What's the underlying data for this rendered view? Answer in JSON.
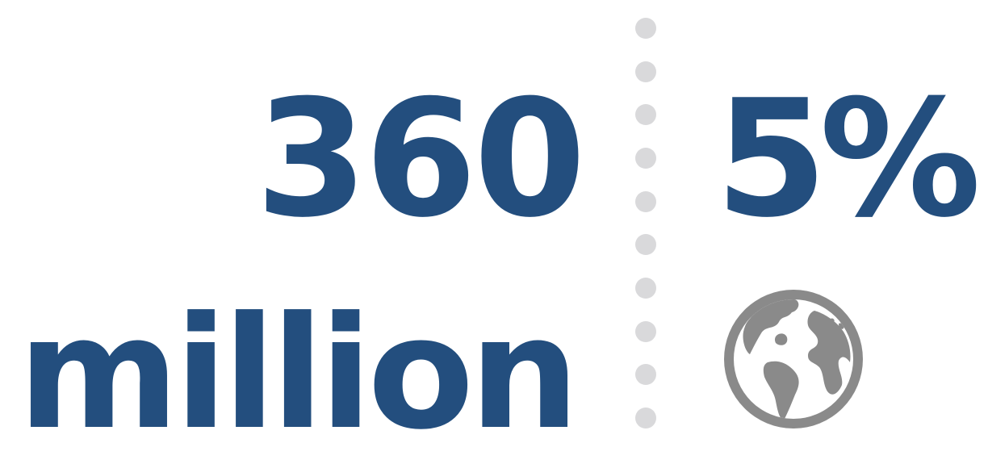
{
  "stat_left": {
    "line1": "360",
    "line2": "million"
  },
  "stat_right": {
    "value": "5%",
    "icon": "globe-icon"
  },
  "colors": {
    "number": "#234e7e",
    "divider": "#d9d9db",
    "icon": "#8a8a8a",
    "background": "#ffffff"
  }
}
